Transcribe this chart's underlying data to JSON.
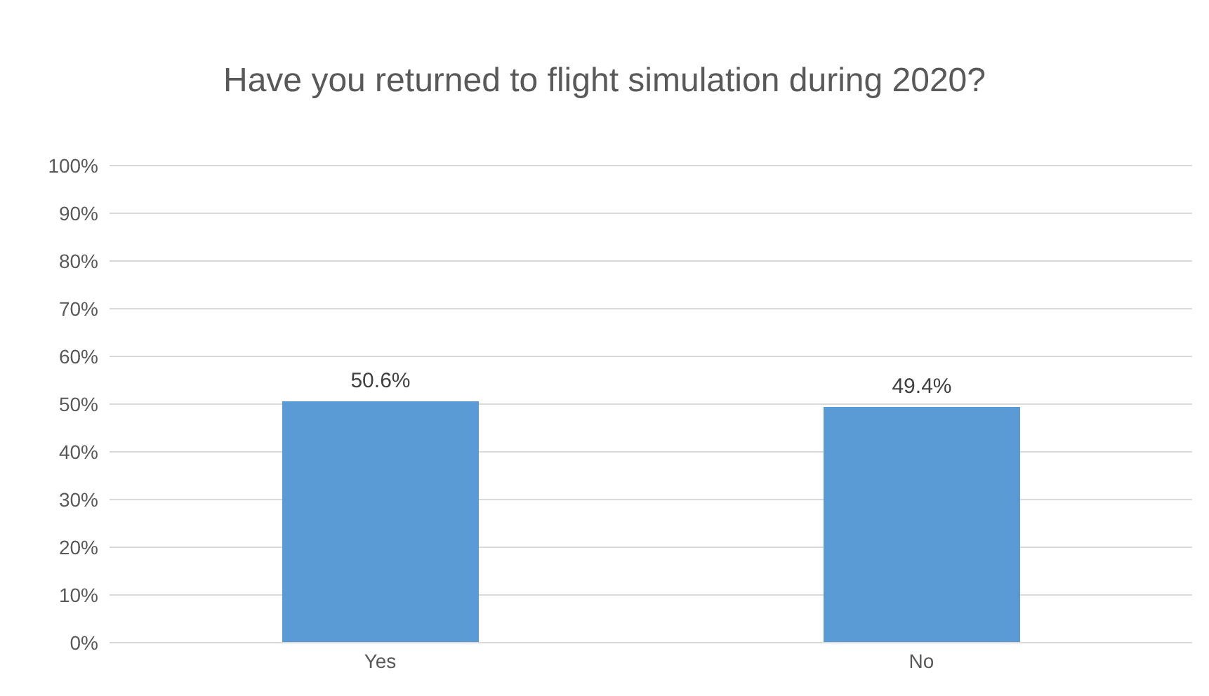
{
  "chart_data": {
    "type": "bar",
    "title": "Have you returned to flight simulation during 2020?",
    "categories": [
      "Yes",
      "No"
    ],
    "values": [
      50.6,
      49.4
    ],
    "color": "#5b9bd5",
    "value_labels": [
      "50.6%",
      "49.4%"
    ],
    "ylim": [
      0,
      100
    ],
    "yticks": [
      {
        "value": 0,
        "label": "0%"
      },
      {
        "value": 10,
        "label": "10%"
      },
      {
        "value": 20,
        "label": "20%"
      },
      {
        "value": 30,
        "label": "30%"
      },
      {
        "value": 40,
        "label": "40%"
      },
      {
        "value": 50,
        "label": "50%"
      },
      {
        "value": 60,
        "label": "60%"
      },
      {
        "value": 70,
        "label": "70%"
      },
      {
        "value": 80,
        "label": "80%"
      },
      {
        "value": 90,
        "label": "90%"
      },
      {
        "value": 100,
        "label": "100%"
      }
    ],
    "grid": "y",
    "legend": false
  }
}
